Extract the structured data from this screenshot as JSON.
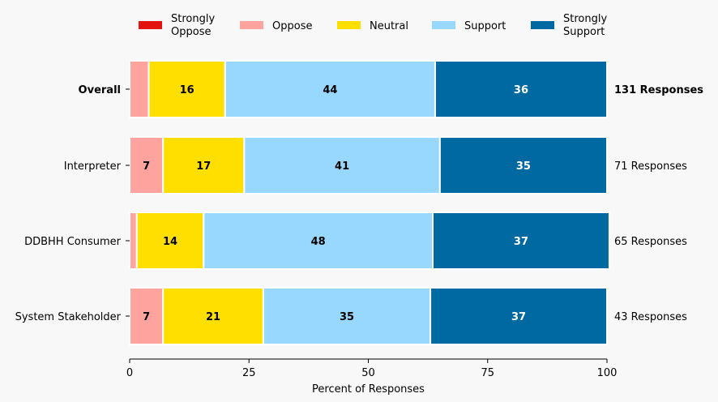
{
  "chart_data": {
    "type": "bar",
    "orientation": "horizontal",
    "stacked": true,
    "title": "",
    "xlabel": "Percent of Responses",
    "ylabel": "",
    "xlim": [
      0,
      100
    ],
    "xticks": [
      0,
      25,
      50,
      75,
      100
    ],
    "grid": false,
    "legend_position": "top",
    "categories": [
      "Overall",
      "Interpreter",
      "DDBHH Consumer",
      "System Stakeholder"
    ],
    "category_bold": [
      true,
      false,
      false,
      false
    ],
    "response_labels": [
      "131 Responses",
      "71 Responses",
      "65 Responses",
      "43 Responses"
    ],
    "series": [
      {
        "name": "Strongly Oppose",
        "legend_label": [
          "Strongly",
          "Oppose"
        ],
        "color": "#e3140f",
        "label_color": "#000000",
        "values": [
          0,
          0,
          0,
          0
        ],
        "labels": [
          "",
          "",
          "",
          ""
        ]
      },
      {
        "name": "Oppose",
        "legend_label": [
          "Oppose"
        ],
        "color": "#ffa39f",
        "label_color": "#000000",
        "values": [
          4,
          7,
          1.5,
          7
        ],
        "labels": [
          "",
          "7",
          "",
          "7"
        ]
      },
      {
        "name": "Neutral",
        "legend_label": [
          "Neutral"
        ],
        "color": "#ffdf00",
        "label_color": "#000000",
        "values": [
          16,
          17,
          14,
          21
        ],
        "labels": [
          "16",
          "17",
          "14",
          "21"
        ]
      },
      {
        "name": "Support",
        "legend_label": [
          "Support"
        ],
        "color": "#99d8fe",
        "label_color": "#000000",
        "values": [
          44,
          41,
          48,
          35
        ],
        "labels": [
          "44",
          "41",
          "48",
          "35"
        ]
      },
      {
        "name": "Strongly Support",
        "legend_label": [
          "Strongly",
          "Support"
        ],
        "color": "#0169a1",
        "label_color": "#ffffff",
        "values": [
          36,
          35,
          37,
          37
        ],
        "labels": [
          "36",
          "35",
          "37",
          "37"
        ]
      }
    ]
  }
}
